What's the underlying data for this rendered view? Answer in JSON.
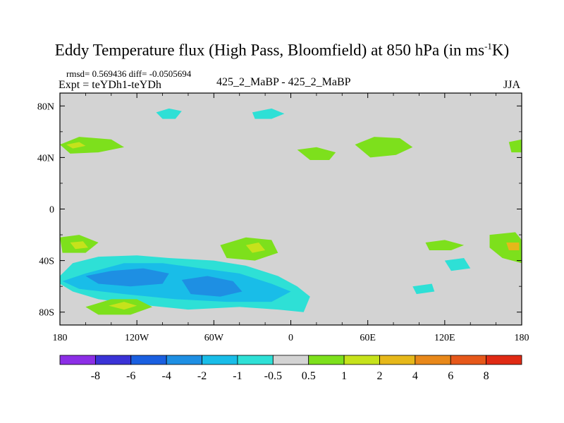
{
  "title_main": "Eddy Temperature flux (High Pass, Bloomfield) at 850 hPa (in ms",
  "title_sup": "-1",
  "title_end": "K)",
  "rmsd_text": "rmsd= 0.569436 diff= -0.0505694",
  "expt_text": "Expt = teYDh1-teYDh",
  "center_text": "425_2_MaBP - 425_2_MaBP",
  "season_text": "JJA",
  "chart_data": {
    "type": "heatmap",
    "title": "Eddy Temperature flux (High Pass, Bloomfield) at 850 hPa (in ms-1K)",
    "xlim": [
      -180,
      180
    ],
    "ylim": [
      -90,
      90
    ],
    "x_ticks": [
      {
        "value": -180,
        "label": "180"
      },
      {
        "value": -120,
        "label": "120W"
      },
      {
        "value": -60,
        "label": "60W"
      },
      {
        "value": 0,
        "label": "0"
      },
      {
        "value": 60,
        "label": "60E"
      },
      {
        "value": 120,
        "label": "120E"
      },
      {
        "value": 180,
        "label": "180"
      }
    ],
    "y_ticks": [
      {
        "value": 80,
        "label": "80N"
      },
      {
        "value": 40,
        "label": "40N"
      },
      {
        "value": 0,
        "label": "0"
      },
      {
        "value": -40,
        "label": "40S"
      },
      {
        "value": -80,
        "label": "80S"
      }
    ],
    "background_color": "#d3d3d3",
    "colorbar": {
      "levels": [
        "-8",
        "-6",
        "-4",
        "-2",
        "-1",
        "-0.5",
        "0.5",
        "1",
        "2",
        "4",
        "6",
        "8"
      ],
      "colors": [
        "#8c2ee6",
        "#3a32d6",
        "#1a5fe0",
        "#1e8fe3",
        "#19bde8",
        "#2ee0d6",
        "#d3d3d3",
        "#7de01c",
        "#c6e21b",
        "#e6b81a",
        "#e8881a",
        "#e6581a",
        "#e02a14"
      ]
    },
    "regions": [
      {
        "name": "sh-negative-band",
        "color": "#2ee0d6",
        "pts": [
          [
            -180,
            -52
          ],
          [
            -170,
            -42
          ],
          [
            -150,
            -37
          ],
          [
            -120,
            -36
          ],
          [
            -95,
            -38
          ],
          [
            -60,
            -40
          ],
          [
            -35,
            -44
          ],
          [
            -10,
            -52
          ],
          [
            5,
            -60
          ],
          [
            15,
            -68
          ],
          [
            10,
            -80
          ],
          [
            -10,
            -78
          ],
          [
            -40,
            -76
          ],
          [
            -80,
            -78
          ],
          [
            -120,
            -74
          ],
          [
            -150,
            -70
          ],
          [
            -170,
            -64
          ],
          [
            -180,
            -58
          ]
        ]
      },
      {
        "name": "sh-minus1-band",
        "color": "#19bde8",
        "pts": [
          [
            -178,
            -56
          ],
          [
            -160,
            -50
          ],
          [
            -130,
            -42
          ],
          [
            -100,
            -42
          ],
          [
            -70,
            -46
          ],
          [
            -40,
            -50
          ],
          [
            -15,
            -58
          ],
          [
            0,
            -64
          ],
          [
            -15,
            -72
          ],
          [
            -50,
            -72
          ],
          [
            -90,
            -70
          ],
          [
            -130,
            -66
          ],
          [
            -165,
            -62
          ]
        ]
      },
      {
        "name": "sh-minus2-core-west",
        "color": "#1e8fe3",
        "pts": [
          [
            -160,
            -52
          ],
          [
            -140,
            -48
          ],
          [
            -115,
            -46
          ],
          [
            -95,
            -50
          ],
          [
            -100,
            -58
          ],
          [
            -125,
            -60
          ],
          [
            -150,
            -58
          ]
        ]
      },
      {
        "name": "sh-minus2-core-east",
        "color": "#1e8fe3",
        "pts": [
          [
            -85,
            -55
          ],
          [
            -65,
            -52
          ],
          [
            -45,
            -56
          ],
          [
            -38,
            -64
          ],
          [
            -55,
            -68
          ],
          [
            -78,
            -66
          ]
        ]
      },
      {
        "name": "sh-positive-patch",
        "color": "#7de01c",
        "pts": [
          [
            -160,
            -76
          ],
          [
            -140,
            -70
          ],
          [
            -120,
            -70
          ],
          [
            -108,
            -76
          ],
          [
            -125,
            -82
          ],
          [
            -150,
            -82
          ]
        ]
      },
      {
        "name": "sh-positive-core",
        "color": "#c6e21b",
        "pts": [
          [
            -142,
            -75
          ],
          [
            -130,
            -72
          ],
          [
            -120,
            -75
          ],
          [
            -130,
            -78
          ]
        ]
      },
      {
        "name": "nh-west-positive",
        "color": "#7de01c",
        "pts": [
          [
            -180,
            50
          ],
          [
            -165,
            56
          ],
          [
            -140,
            54
          ],
          [
            -130,
            48
          ],
          [
            -150,
            44
          ],
          [
            -172,
            43
          ]
        ]
      },
      {
        "name": "nh-west-core",
        "color": "#c6e21b",
        "pts": [
          [
            -175,
            50
          ],
          [
            -165,
            52
          ],
          [
            -160,
            49
          ],
          [
            -170,
            47
          ]
        ]
      },
      {
        "name": "nh-cyan-north",
        "color": "#2ee0d6",
        "pts": [
          [
            -105,
            75
          ],
          [
            -95,
            78
          ],
          [
            -85,
            76
          ],
          [
            -90,
            70
          ],
          [
            -100,
            70
          ]
        ]
      },
      {
        "name": "nh-cyan-central",
        "color": "#2ee0d6",
        "pts": [
          [
            -30,
            75
          ],
          [
            -15,
            78
          ],
          [
            -5,
            74
          ],
          [
            -15,
            70
          ],
          [
            -28,
            70
          ]
        ]
      },
      {
        "name": "asia-positive",
        "color": "#7de01c",
        "pts": [
          [
            50,
            50
          ],
          [
            65,
            56
          ],
          [
            85,
            55
          ],
          [
            95,
            48
          ],
          [
            82,
            42
          ],
          [
            62,
            40
          ]
        ]
      },
      {
        "name": "pacific-positive",
        "color": "#7de01c",
        "pts": [
          [
            5,
            46
          ],
          [
            20,
            48
          ],
          [
            35,
            44
          ],
          [
            30,
            38
          ],
          [
            15,
            38
          ]
        ]
      },
      {
        "name": "ne-pacific-positive",
        "color": "#7de01c",
        "pts": [
          [
            170,
            52
          ],
          [
            180,
            54
          ],
          [
            180,
            44
          ],
          [
            172,
            44
          ]
        ]
      },
      {
        "name": "sa-positive",
        "color": "#7de01c",
        "pts": [
          [
            -55,
            -28
          ],
          [
            -35,
            -22
          ],
          [
            -15,
            -24
          ],
          [
            -10,
            -34
          ],
          [
            -28,
            -40
          ],
          [
            -50,
            -38
          ]
        ]
      },
      {
        "name": "sa-core",
        "color": "#c6e21b",
        "pts": [
          [
            -35,
            -28
          ],
          [
            -25,
            -26
          ],
          [
            -20,
            -32
          ],
          [
            -30,
            -34
          ]
        ]
      },
      {
        "name": "australia-positive",
        "color": "#7de01c",
        "pts": [
          [
            105,
            -26
          ],
          [
            120,
            -24
          ],
          [
            135,
            -28
          ],
          [
            125,
            -32
          ],
          [
            108,
            -32
          ]
        ]
      },
      {
        "name": "ne-sh-positive",
        "color": "#7de01c",
        "pts": [
          [
            155,
            -20
          ],
          [
            175,
            -18
          ],
          [
            180,
            -24
          ],
          [
            180,
            -42
          ],
          [
            165,
            -38
          ],
          [
            155,
            -30
          ]
        ]
      },
      {
        "name": "ne-sh-core",
        "color": "#e6b81a",
        "pts": [
          [
            168,
            -26
          ],
          [
            178,
            -26
          ],
          [
            178,
            -32
          ],
          [
            170,
            -32
          ]
        ]
      },
      {
        "name": "indian-cyan",
        "color": "#2ee0d6",
        "pts": [
          [
            120,
            -40
          ],
          [
            135,
            -38
          ],
          [
            140,
            -46
          ],
          [
            125,
            -48
          ]
        ]
      },
      {
        "name": "indian-cyan-2",
        "color": "#2ee0d6",
        "pts": [
          [
            95,
            -60
          ],
          [
            110,
            -58
          ],
          [
            112,
            -64
          ],
          [
            98,
            -66
          ]
        ]
      },
      {
        "name": "west-sh-positive",
        "color": "#7de01c",
        "pts": [
          [
            -180,
            -22
          ],
          [
            -165,
            -20
          ],
          [
            -150,
            -26
          ],
          [
            -160,
            -34
          ],
          [
            -178,
            -34
          ]
        ]
      },
      {
        "name": "west-sh-core",
        "color": "#c6e21b",
        "pts": [
          [
            -172,
            -26
          ],
          [
            -162,
            -25
          ],
          [
            -158,
            -30
          ],
          [
            -168,
            -31
          ]
        ]
      }
    ]
  }
}
